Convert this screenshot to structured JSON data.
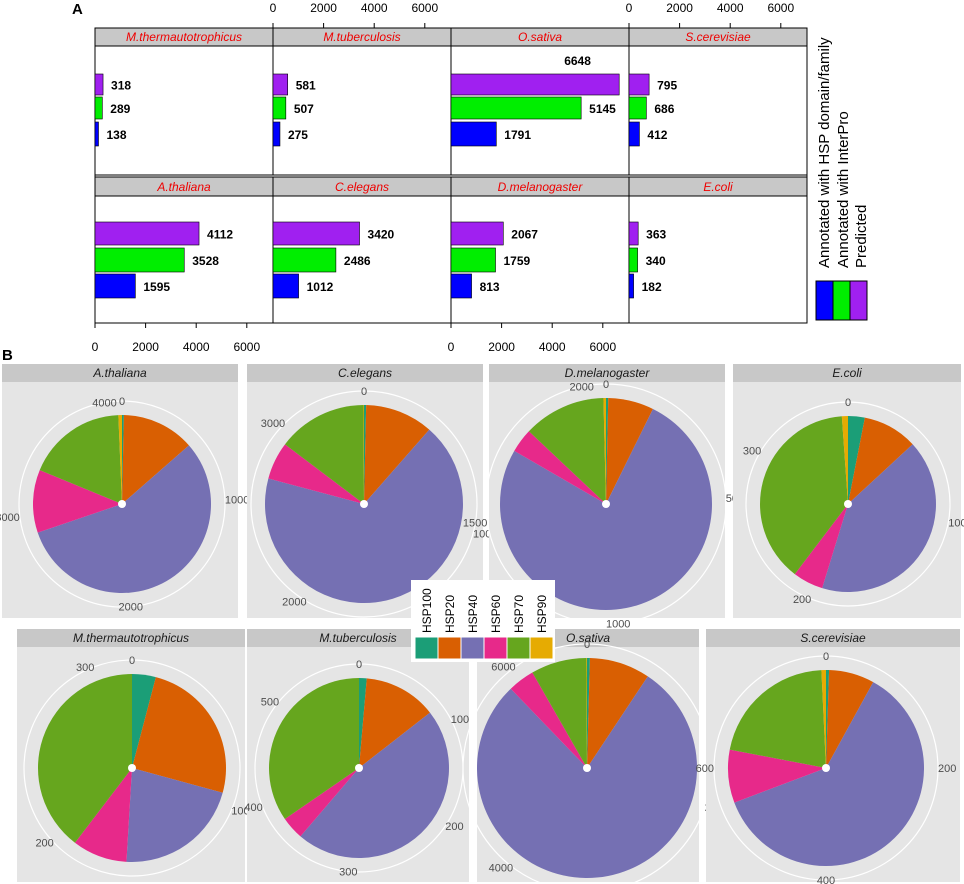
{
  "panel_labels": {
    "a": "A",
    "b": "B"
  },
  "colors": {
    "predicted": "#0000ff",
    "interpro": "#00ee00",
    "hsp": "#a020f0",
    "strip_bg": "#c8c8c8",
    "strip_text": "#ee0000",
    "pie_bg": "#e5e5e5",
    "HSP100": "#1b9e77",
    "HSP20": "#d95f02",
    "HSP40": "#7570b3",
    "HSP60": "#e7298a",
    "HSP70": "#66a61e",
    "HSP90": "#e6ab02"
  },
  "legend_a": {
    "items": [
      "Annotated with HSP domain/family",
      "Annotated with InterPro",
      "Predicted"
    ]
  },
  "legend_b": {
    "items": [
      "HSP100",
      "HSP20",
      "HSP40",
      "HSP60",
      "HSP70",
      "HSP90"
    ]
  },
  "chart_data": [
    {
      "type": "bar",
      "orientation": "horizontal",
      "title": "A",
      "axis": {
        "ticks": [
          "0",
          "2000",
          "4000",
          "6000"
        ],
        "xlim": [
          0,
          7000
        ]
      },
      "series_names": [
        "Predicted",
        "Annotated with InterPro",
        "Annotated with HSP domain/family"
      ],
      "facets": [
        {
          "name": "M.thermautotrophicus",
          "values": [
            138,
            289,
            318
          ]
        },
        {
          "name": "M.tuberculosis",
          "values": [
            275,
            507,
            581
          ]
        },
        {
          "name": "O.sativa",
          "values": [
            1791,
            5145,
            6648
          ]
        },
        {
          "name": "S.cerevisiae",
          "values": [
            412,
            686,
            795
          ]
        },
        {
          "name": "A.thaliana",
          "values": [
            1595,
            3528,
            4112
          ]
        },
        {
          "name": "C.elegans",
          "values": [
            1012,
            2486,
            3420
          ]
        },
        {
          "name": "D.melanogaster",
          "values": [
            813,
            1759,
            2067
          ]
        },
        {
          "name": "E.coli",
          "values": [
            182,
            340,
            363
          ]
        }
      ]
    },
    {
      "type": "pie",
      "title": "B",
      "categories": [
        "HSP100",
        "HSP20",
        "HSP40",
        "HSP60",
        "HSP70",
        "HSP90"
      ],
      "facets": [
        {
          "name": "A.thaliana",
          "values": [
            14,
            543,
            2313,
            470,
            745,
            27
          ],
          "ticks": [
            "0",
            "1000",
            "2000",
            "3000",
            "4000"
          ]
        },
        {
          "name": "C.elegans",
          "values": [
            12,
            380,
            2315,
            210,
            500,
            3
          ],
          "ticks": [
            "0",
            "1000",
            "2000",
            "3000"
          ]
        },
        {
          "name": "D.melanogaster",
          "values": [
            7,
            144,
            1572,
            76,
            260,
            8
          ],
          "ticks": [
            "0",
            "500",
            "1000",
            "1500",
            "2000"
          ]
        },
        {
          "name": "E.coli",
          "values": [
            11,
            36,
            149,
            20,
            138,
            4
          ],
          "ticks": [
            "0",
            "100",
            "200",
            "300"
          ]
        },
        {
          "name": "M.thermautotrophicus",
          "values": [
            13,
            80,
            69,
            30,
            126,
            0
          ],
          "ticks": [
            "0",
            "100",
            "200",
            "300"
          ]
        },
        {
          "name": "M.tuberculosis",
          "values": [
            8,
            76,
            272,
            24,
            201,
            0
          ],
          "ticks": [
            "0",
            "100",
            "200",
            "300",
            "400",
            "500"
          ]
        },
        {
          "name": "O.sativa",
          "values": [
            28,
            592,
            5218,
            260,
            544,
            6
          ],
          "ticks": [
            "0",
            "2000",
            "4000",
            "6000"
          ]
        },
        {
          "name": "S.cerevisiae",
          "values": [
            4,
            60,
            490,
            70,
            170,
            6
          ],
          "ticks": [
            "0",
            "200",
            "400",
            "600"
          ]
        }
      ]
    }
  ]
}
